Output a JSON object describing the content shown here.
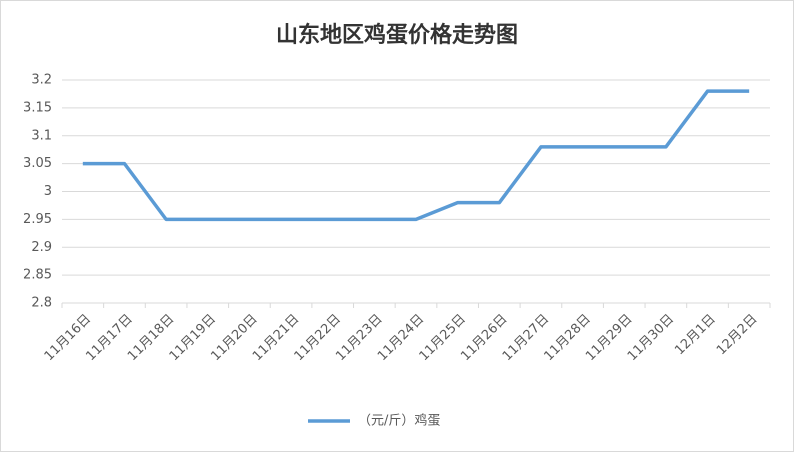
{
  "chart_data": {
    "type": "line",
    "title": "山东地区鸡蛋价格走势图",
    "categories": [
      "11月16日",
      "11月17日",
      "11月18日",
      "11月19日",
      "11月20日",
      "11月21日",
      "11月22日",
      "11月23日",
      "11月24日",
      "11月25日",
      "11月26日",
      "11月27日",
      "11月28日",
      "11月29日",
      "11月30日",
      "12月1日",
      "12月2日"
    ],
    "series": [
      {
        "name": "（元/斤）鸡蛋",
        "color": "#5b9bd5",
        "values": [
          3.05,
          3.05,
          2.95,
          2.95,
          2.95,
          2.95,
          2.95,
          2.95,
          2.95,
          2.98,
          2.98,
          3.08,
          3.08,
          3.08,
          3.08,
          3.18,
          3.18
        ]
      }
    ],
    "ylim": [
      2.8,
      3.2
    ],
    "yticks": [
      2.8,
      2.85,
      2.9,
      2.95,
      3,
      3.05,
      3.1,
      3.15,
      3.2
    ],
    "grid": true,
    "legend": "bottom"
  }
}
